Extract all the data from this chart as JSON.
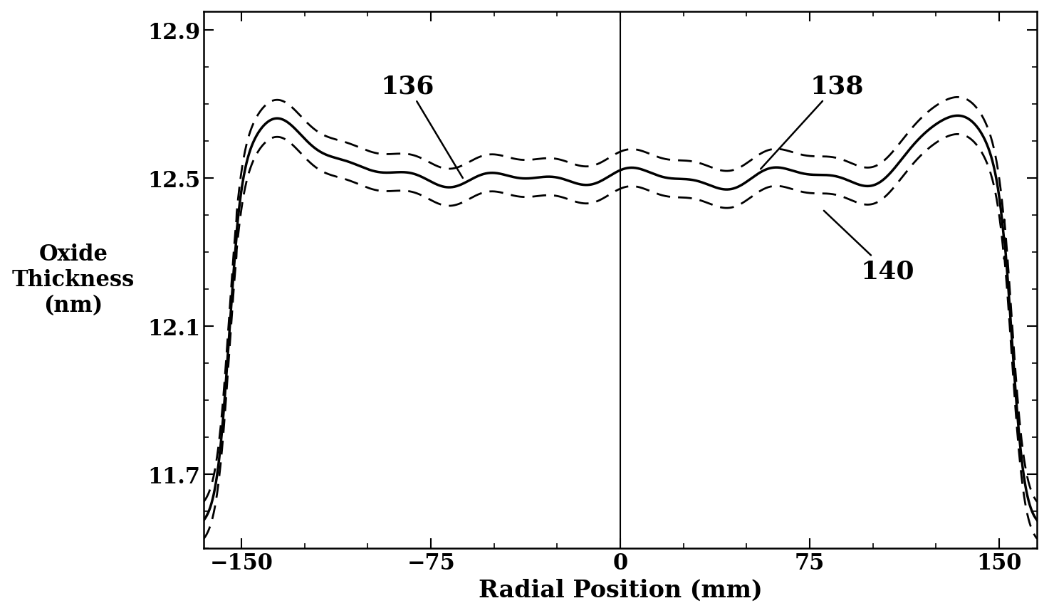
{
  "xlabel": "Radial Position (mm)",
  "ylabel": "Oxide\nThickness\n(nm)",
  "xlim": [
    -165,
    165
  ],
  "ylim": [
    11.5,
    12.95
  ],
  "yticks": [
    11.7,
    12.1,
    12.5,
    12.9
  ],
  "xticks": [
    -150,
    -75,
    0,
    75,
    150
  ],
  "label_136": "136",
  "label_138": "138",
  "label_140": "140",
  "background_color": "#ffffff",
  "line_color": "#000000"
}
